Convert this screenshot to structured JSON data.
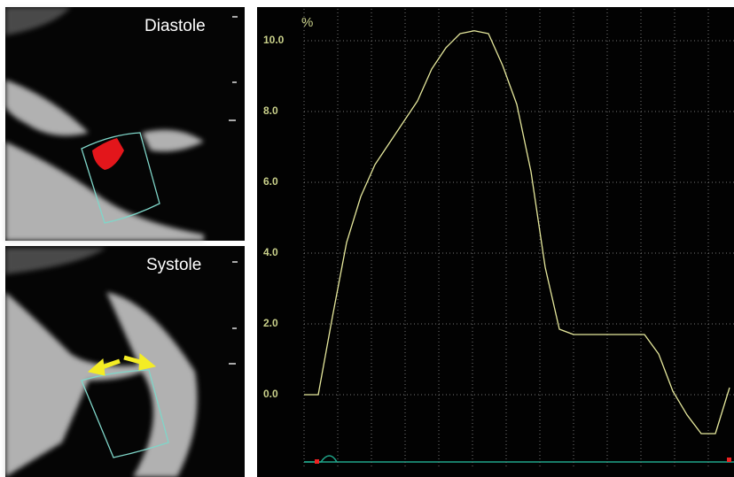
{
  "images": {
    "top_label": "Diastole",
    "bottom_label": "Systole"
  },
  "chart_data": {
    "type": "line",
    "y_label": "%",
    "categories": [
      null,
      null,
      null,
      null,
      null,
      null,
      null,
      null,
      null,
      null,
      null,
      null,
      null,
      null,
      null,
      null,
      null,
      null,
      null,
      null,
      null,
      null,
      null,
      null,
      null,
      null,
      null,
      null,
      null,
      null,
      null
    ],
    "values": [
      0,
      0,
      2.2,
      4.3,
      5.6,
      6.5,
      7.1,
      7.7,
      8.3,
      9.2,
      9.8,
      10.2,
      10.28,
      10.2,
      9.3,
      8.2,
      6.3,
      3.6,
      1.85,
      1.7,
      1.7,
      1.7,
      1.7,
      1.7,
      1.7,
      1.15,
      0.1,
      -0.57,
      -1.1,
      -1.1,
      0.2
    ],
    "color": "#e6e89c",
    "ylim": [
      -2.1,
      10.9
    ],
    "yticks": [
      {
        "value": 0,
        "label": "0.0"
      },
      {
        "value": 2,
        "label": "2.0"
      },
      {
        "value": 4,
        "label": "4.0"
      },
      {
        "value": 6,
        "label": "6.0"
      },
      {
        "value": 8,
        "label": "8.0"
      },
      {
        "value": 10,
        "label": "10.0"
      }
    ],
    "grid": true
  }
}
